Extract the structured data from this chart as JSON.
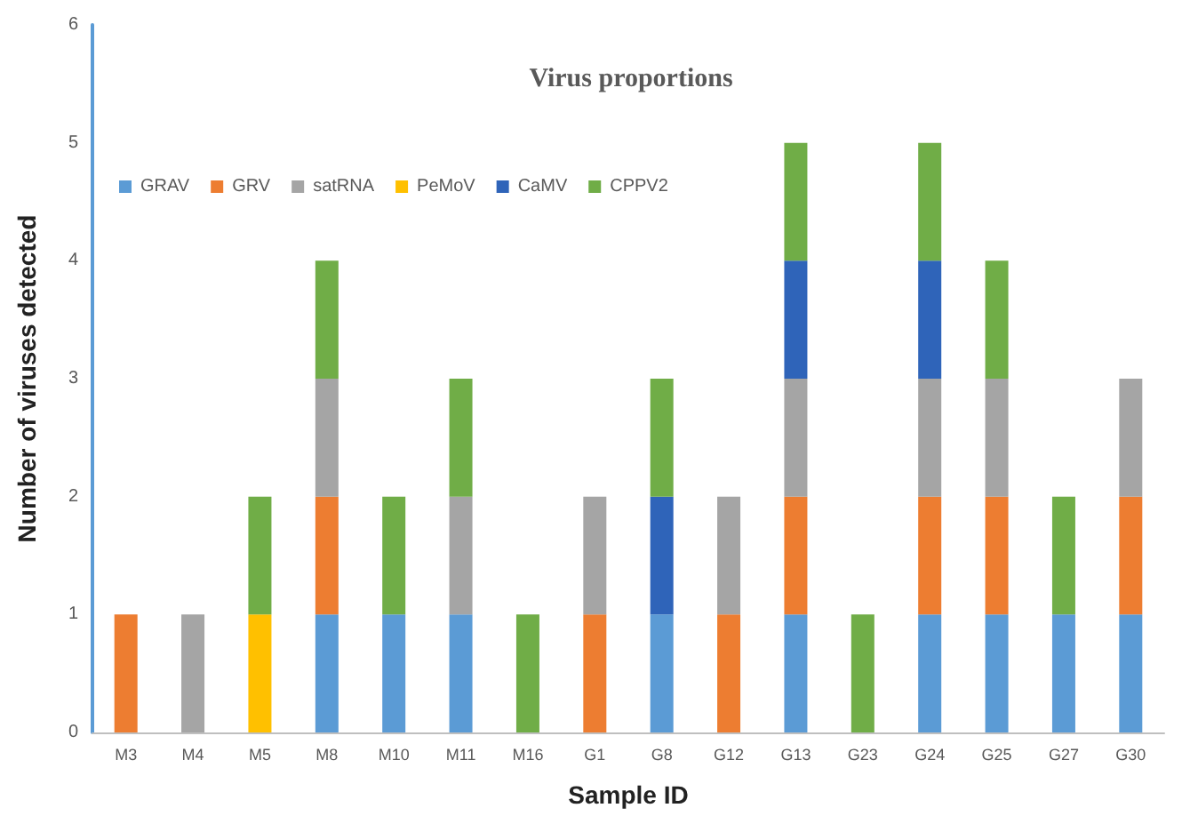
{
  "chart_data": {
    "type": "bar",
    "stacked": true,
    "title": "Virus proportions",
    "xlabel": "Sample ID",
    "ylabel": "Number of viruses detected",
    "categories": [
      "M3",
      "M4",
      "M5",
      "M8",
      "M10",
      "M11",
      "M16",
      "G1",
      "G8",
      "G12",
      "G13",
      "G23",
      "G24",
      "G25",
      "G27",
      "G30"
    ],
    "series": [
      {
        "name": "GRAV",
        "color": "#5b9bd5",
        "values": [
          null,
          null,
          null,
          1,
          1,
          1,
          null,
          null,
          1,
          null,
          1,
          null,
          1,
          1,
          1,
          1
        ]
      },
      {
        "name": "GRV",
        "color": "#ed7d31",
        "values": [
          1,
          null,
          null,
          1,
          null,
          null,
          null,
          1,
          null,
          1,
          1,
          null,
          1,
          1,
          null,
          1
        ]
      },
      {
        "name": "satRNA",
        "color": "#a5a5a5",
        "values": [
          null,
          1,
          null,
          1,
          null,
          1,
          null,
          1,
          null,
          1,
          1,
          null,
          1,
          1,
          null,
          1
        ]
      },
      {
        "name": "PeMoV",
        "color": "#ffc000",
        "values": [
          null,
          null,
          1,
          null,
          null,
          null,
          null,
          null,
          null,
          null,
          null,
          null,
          null,
          null,
          null,
          null
        ]
      },
      {
        "name": "CaMV",
        "color": "#2f64b9",
        "values": [
          null,
          null,
          null,
          null,
          null,
          null,
          null,
          null,
          1,
          null,
          1,
          null,
          1,
          null,
          null,
          null
        ]
      },
      {
        "name": "CPPV2",
        "color": "#70ad47",
        "values": [
          null,
          null,
          1,
          1,
          1,
          1,
          1,
          null,
          1,
          null,
          1,
          1,
          1,
          1,
          1,
          null
        ]
      }
    ],
    "ylim": [
      0,
      6
    ],
    "yticks": [
      0,
      1,
      2,
      3,
      4,
      5,
      6
    ],
    "grid": false,
    "legend": "top left"
  }
}
